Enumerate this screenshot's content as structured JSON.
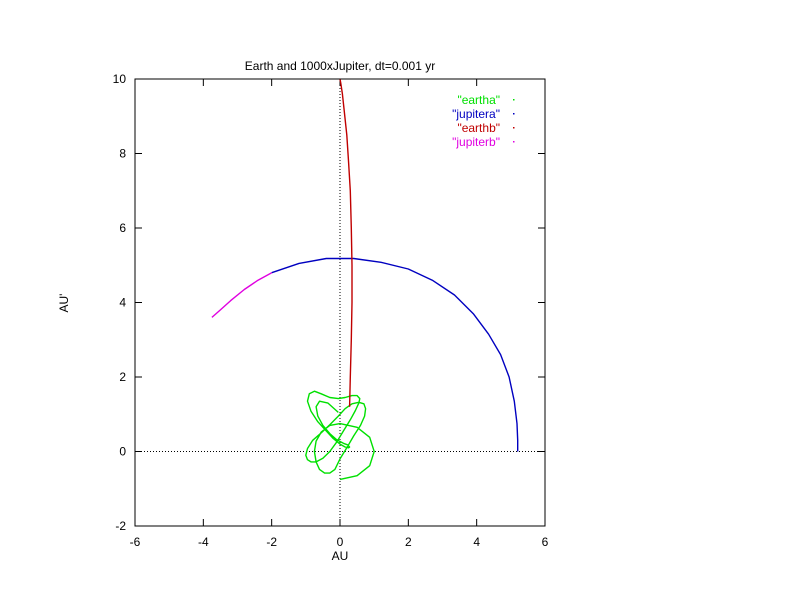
{
  "chart_data": {
    "type": "line",
    "title": "Earth and 1000xJupiter, dt=0.001 yr",
    "xlabel": "AU",
    "ylabel": "AU'",
    "xlim": [
      -6,
      6
    ],
    "ylim": [
      -2,
      10
    ],
    "x_ticks": [
      -6,
      -4,
      -2,
      0,
      2,
      4,
      6
    ],
    "y_ticks": [
      -2,
      0,
      2,
      4,
      6,
      8,
      10
    ],
    "x_tick_labels": [
      "-6",
      "-4",
      "-2",
      "0",
      "2",
      "4",
      "6"
    ],
    "y_tick_labels": [
      "-2",
      "0",
      "2",
      "4",
      "6",
      "8",
      "10"
    ],
    "zero_axes": true,
    "grid": false,
    "legend_position": "top-right",
    "series": [
      {
        "name": "\"eartha\"",
        "color": "#00e000",
        "x": [
          0.0,
          0.5,
          0.87,
          1.0,
          0.87,
          0.5,
          0.0,
          -0.3,
          -0.55,
          -0.7,
          -0.75,
          -0.7,
          -0.6,
          -0.45,
          -0.3,
          -0.15,
          0.0,
          0.2,
          0.4,
          0.6,
          0.72,
          0.75,
          0.7,
          0.55,
          0.35,
          0.15,
          -0.05,
          -0.3,
          -0.55,
          -0.8,
          -0.95,
          -1.0,
          -0.95,
          -0.85,
          -0.7,
          -0.5,
          -0.3,
          -0.1,
          0.1,
          0.3,
          0.45,
          0.55,
          0.58,
          0.5,
          0.35,
          0.15,
          -0.05,
          -0.3,
          -0.55,
          -0.75,
          -0.9,
          -0.95,
          -0.85,
          -0.65,
          -0.4,
          -0.2,
          0.0,
          0.15,
          0.25,
          0.28,
          0.22,
          0.1,
          -0.1,
          -0.3,
          -0.5,
          -0.65,
          -0.7,
          -0.6,
          -0.35,
          -0.05
        ],
        "y": [
          -0.75,
          -0.65,
          -0.38,
          0.0,
          0.38,
          0.65,
          0.75,
          0.7,
          0.52,
          0.28,
          0.0,
          -0.28,
          -0.48,
          -0.58,
          -0.58,
          -0.48,
          -0.2,
          0.1,
          0.42,
          0.7,
          0.95,
          1.15,
          1.28,
          1.32,
          1.28,
          1.15,
          0.95,
          0.72,
          0.5,
          0.3,
          0.08,
          -0.1,
          -0.22,
          -0.28,
          -0.28,
          -0.18,
          0.0,
          0.25,
          0.55,
          0.85,
          1.1,
          1.3,
          1.42,
          1.5,
          1.5,
          1.45,
          1.42,
          1.45,
          1.55,
          1.62,
          1.55,
          1.35,
          1.08,
          0.8,
          0.55,
          0.35,
          0.2,
          0.12,
          0.1,
          0.12,
          0.18,
          0.22,
          0.32,
          0.48,
          0.7,
          0.95,
          1.2,
          1.35,
          1.3,
          1.05
        ]
      },
      {
        "name": "\"jupitera\"",
        "color": "#0000c0",
        "x": [
          5.2,
          5.2,
          5.18,
          5.1,
          4.95,
          4.7,
          4.35,
          3.9,
          3.35,
          2.7,
          2.0,
          1.2,
          0.4,
          -0.4,
          -1.2,
          -2.0
        ],
        "y": [
          0.0,
          0.3,
          0.75,
          1.35,
          2.0,
          2.6,
          3.15,
          3.7,
          4.2,
          4.6,
          4.9,
          5.08,
          5.18,
          5.18,
          5.05,
          4.8
        ]
      },
      {
        "name": "\"earthb\"",
        "color": "#c00000",
        "x": [
          0.28,
          0.3,
          0.33,
          0.35,
          0.35,
          0.33,
          0.3,
          0.25,
          0.2,
          0.13,
          0.07,
          0.02,
          0.0
        ],
        "y": [
          1.2,
          2.0,
          3.0,
          4.0,
          5.0,
          6.0,
          7.0,
          7.8,
          8.5,
          9.1,
          9.6,
          9.9,
          10.0
        ]
      },
      {
        "name": "\"jupiterb\"",
        "color": "#e000e0",
        "x": [
          -2.0,
          -2.4,
          -2.8,
          -3.2,
          -3.5,
          -3.75
        ],
        "y": [
          4.8,
          4.6,
          4.35,
          4.05,
          3.8,
          3.6
        ]
      }
    ]
  }
}
